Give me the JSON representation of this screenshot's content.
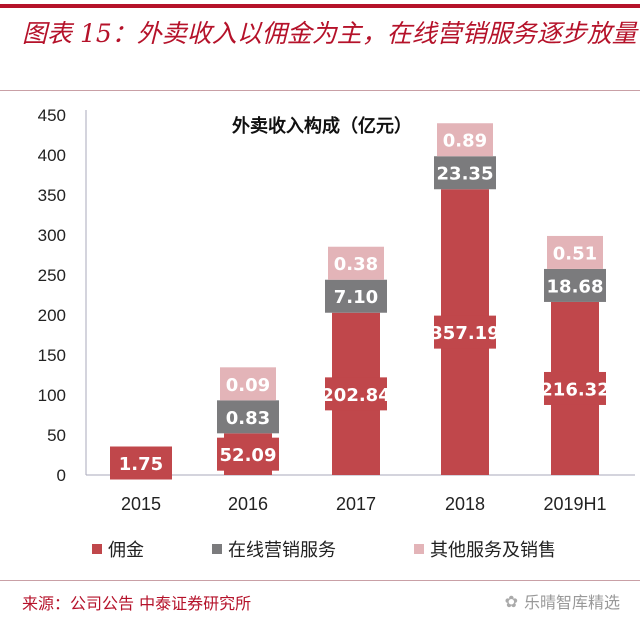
{
  "header": {
    "title": "图表 15：外卖收入以佣金为主，在线营销服务逐步放量"
  },
  "chart_data": {
    "type": "bar",
    "stacked": true,
    "title": "外卖收入构成（亿元）",
    "categories": [
      "2015",
      "2016",
      "2017",
      "2018",
      "2019H1"
    ],
    "series": [
      {
        "name": "佣金",
        "color": "#c0474b",
        "values": [
          1.75,
          52.09,
          202.84,
          357.19,
          216.32
        ],
        "labels": [
          "1.75",
          "52.09",
          "202.84",
          "357.19",
          "216.32"
        ]
      },
      {
        "name": "在线营销服务",
        "color": "#7b7b7d",
        "values": [
          null,
          0.83,
          7.1,
          23.35,
          18.68
        ],
        "labels": [
          null,
          "0.83",
          "7.10",
          "23.35",
          "18.68"
        ]
      },
      {
        "name": "其他服务及销售",
        "color": "#e3b4b8",
        "values": [
          null,
          0.09,
          0.38,
          0.89,
          0.51
        ],
        "labels": [
          null,
          "0.09",
          "0.38",
          "0.89",
          "0.51"
        ]
      }
    ],
    "ylim": [
      0,
      450
    ],
    "yticks": [
      "0",
      "50",
      "100",
      "150",
      "200",
      "250",
      "300",
      "350",
      "400",
      "450"
    ],
    "grid": false,
    "legend_position": "bottom"
  },
  "footer": {
    "source": "来源：公司公告   中泰证券研究所",
    "watermark": "乐晴智库精选"
  }
}
